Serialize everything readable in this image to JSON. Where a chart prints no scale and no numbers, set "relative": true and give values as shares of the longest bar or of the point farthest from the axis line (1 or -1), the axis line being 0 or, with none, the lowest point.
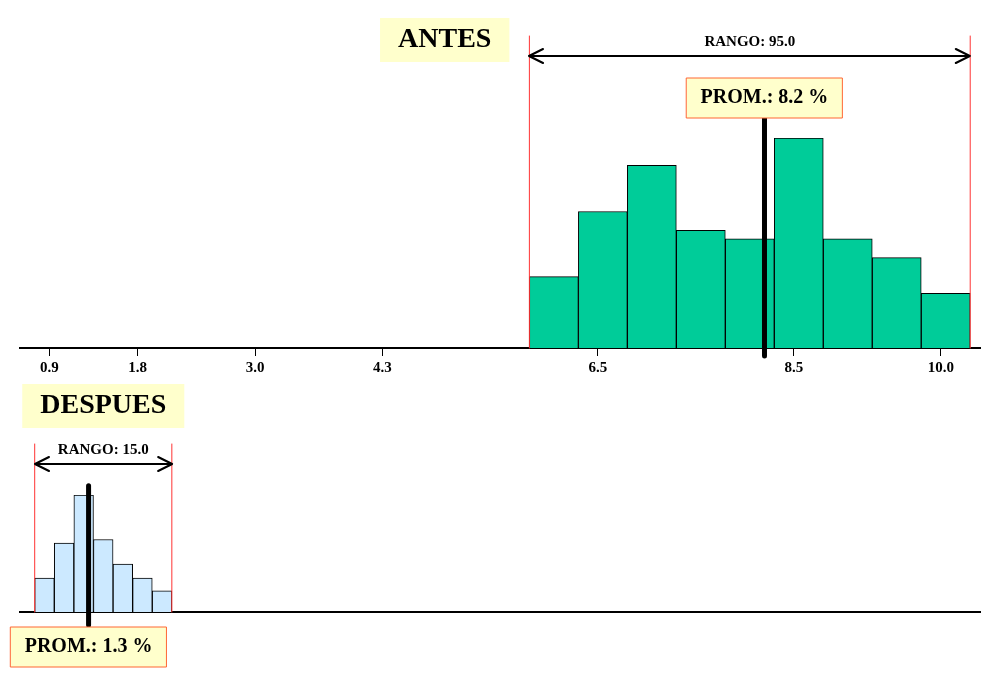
{
  "chart_data": [
    {
      "type": "bar",
      "title": "ANTES",
      "relative": true,
      "color": "#00cc99",
      "xlim": [
        0.6,
        10.4
      ],
      "xticks": [
        {
          "value": 0.9,
          "label": "0.9"
        },
        {
          "value": 1.8,
          "label": "1.8"
        },
        {
          "value": 3,
          "label": "3.0"
        },
        {
          "value": 4.3,
          "label": "4.3"
        },
        {
          "value": 6.5,
          "label": "6.5"
        },
        {
          "value": 8.5,
          "label": "8.5"
        },
        {
          "value": 10,
          "label": "10.0"
        }
      ],
      "x": [
        6.05,
        6.55,
        7.05,
        7.55,
        8.05,
        8.55,
        9.05,
        9.55,
        10.05
      ],
      "values": [
        0.34,
        0.65,
        0.87,
        0.56,
        0.52,
        1,
        0.52,
        0.43,
        0.26
      ],
      "ref_lines": [
        {
          "axis": "x",
          "value": 8.2,
          "label": "PROM.: 8.2 %",
          "color": "#000000"
        },
        {
          "axis": "x",
          "value": 5.8,
          "color": "#ff3333"
        },
        {
          "axis": "x",
          "value": 10.3,
          "color": "#ff3333"
        }
      ],
      "annotations": [
        "RANGO: 95.0"
      ]
    },
    {
      "type": "bar",
      "title": "DESPUES",
      "relative": true,
      "color": "#cce9ff",
      "xlim": [
        0.6,
        10.4
      ],
      "x": [
        0.85,
        1.05,
        1.25,
        1.45,
        1.65,
        1.85,
        2.05
      ],
      "values": [
        0.29,
        0.59,
        1,
        0.62,
        0.41,
        0.29,
        0.18
      ],
      "ref_lines": [
        {
          "axis": "x",
          "value": 1.3,
          "label": "PROM.: 1.3 %",
          "color": "#000000"
        },
        {
          "axis": "x",
          "value": 0.75,
          "color": "#ff3333"
        },
        {
          "axis": "x",
          "value": 2.15,
          "color": "#ff3333"
        }
      ],
      "annotations": [
        "RANGO: 15.0"
      ]
    }
  ]
}
